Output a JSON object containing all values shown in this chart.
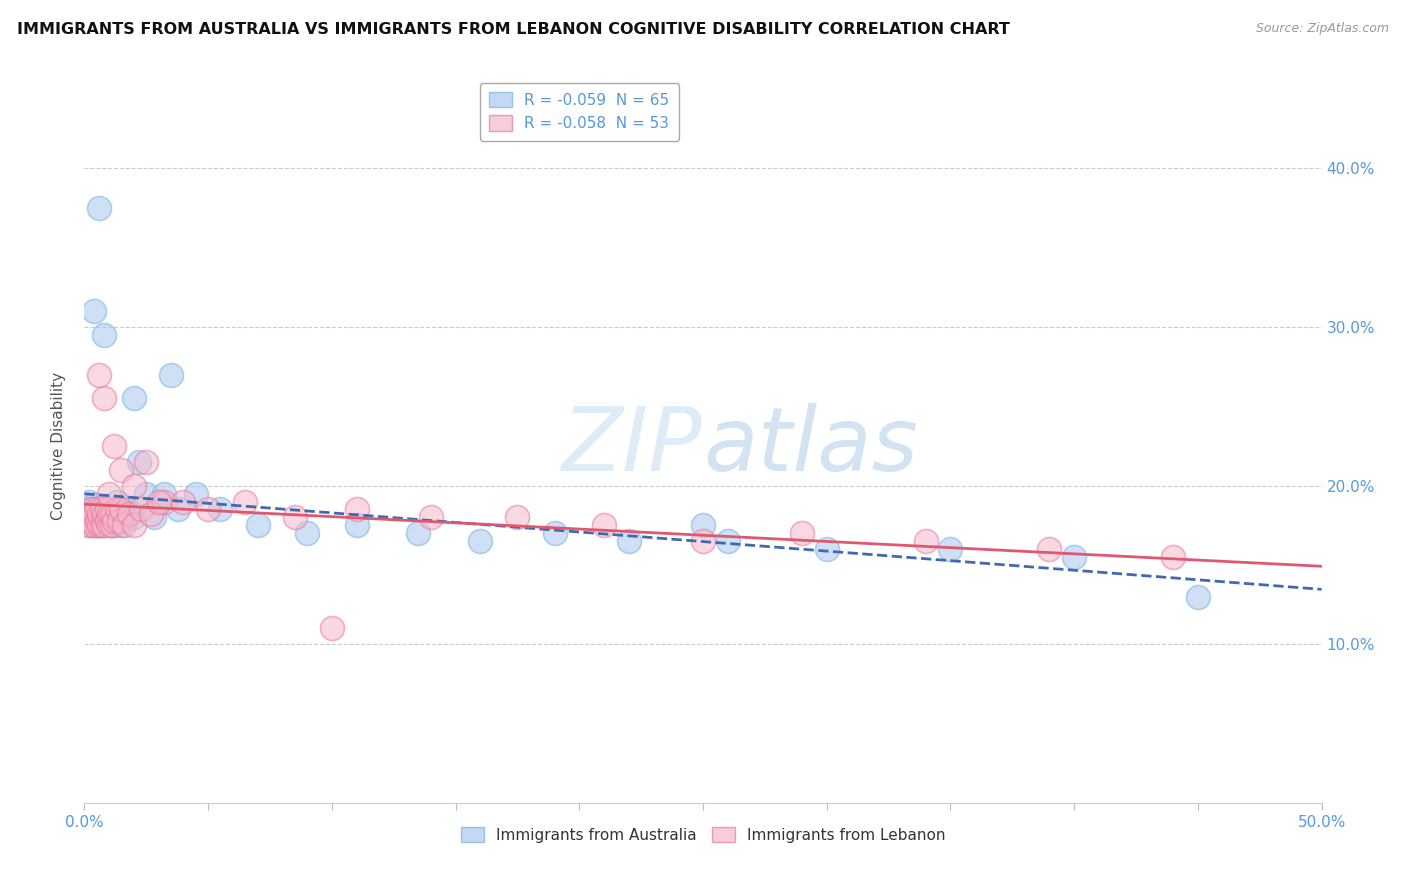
{
  "title": "IMMIGRANTS FROM AUSTRALIA VS IMMIGRANTS FROM LEBANON COGNITIVE DISABILITY CORRELATION CHART",
  "source": "Source: ZipAtlas.com",
  "ylabel": "Cognitive Disability",
  "xlim": [
    0.0,
    0.5
  ],
  "ylim": [
    0.0,
    0.45
  ],
  "australia_color": "#a8c8f0",
  "australia_edge_color": "#7ab3e0",
  "lebanon_color": "#f5b8cc",
  "lebanon_edge_color": "#e87a9a",
  "australia_line_color": "#4169b0",
  "lebanon_line_color": "#e05870",
  "watermark_color": "#ddeefa",
  "background_color": "#ffffff",
  "grid_color": "#cccccc",
  "tick_color": "#5599dd",
  "legend_R1": "R = -0.059  N = 65",
  "legend_R2": "R = -0.058  N = 53",
  "aus_label": "Immigrants from Australia",
  "leb_label": "Immigrants from Lebanon",
  "australia_x": [
    0.001,
    0.002,
    0.002,
    0.003,
    0.003,
    0.003,
    0.003,
    0.004,
    0.004,
    0.004,
    0.005,
    0.005,
    0.005,
    0.006,
    0.006,
    0.006,
    0.007,
    0.007,
    0.007,
    0.008,
    0.008,
    0.008,
    0.009,
    0.009,
    0.01,
    0.01,
    0.01,
    0.011,
    0.011,
    0.012,
    0.012,
    0.013,
    0.013,
    0.014,
    0.015,
    0.016,
    0.017,
    0.018,
    0.02,
    0.022,
    0.025,
    0.028,
    0.032,
    0.038,
    0.045,
    0.055,
    0.07,
    0.09,
    0.11,
    0.135,
    0.16,
    0.19,
    0.22,
    0.26,
    0.3,
    0.35,
    0.4,
    0.45,
    0.015,
    0.008,
    0.006,
    0.004,
    0.02,
    0.035,
    0.25
  ],
  "australia_y": [
    0.183,
    0.175,
    0.19,
    0.182,
    0.18,
    0.185,
    0.178,
    0.175,
    0.182,
    0.188,
    0.182,
    0.175,
    0.18,
    0.185,
    0.175,
    0.18,
    0.185,
    0.178,
    0.182,
    0.18,
    0.175,
    0.185,
    0.178,
    0.185,
    0.182,
    0.178,
    0.185,
    0.18,
    0.175,
    0.182,
    0.175,
    0.19,
    0.18,
    0.185,
    0.183,
    0.178,
    0.185,
    0.182,
    0.18,
    0.215,
    0.195,
    0.18,
    0.195,
    0.185,
    0.195,
    0.185,
    0.175,
    0.17,
    0.175,
    0.17,
    0.165,
    0.17,
    0.165,
    0.165,
    0.16,
    0.16,
    0.155,
    0.13,
    0.175,
    0.295,
    0.375,
    0.31,
    0.255,
    0.27,
    0.175
  ],
  "lebanon_x": [
    0.001,
    0.002,
    0.002,
    0.003,
    0.003,
    0.004,
    0.004,
    0.005,
    0.005,
    0.006,
    0.006,
    0.007,
    0.007,
    0.008,
    0.008,
    0.009,
    0.009,
    0.01,
    0.01,
    0.011,
    0.011,
    0.012,
    0.013,
    0.014,
    0.015,
    0.016,
    0.018,
    0.02,
    0.023,
    0.027,
    0.032,
    0.04,
    0.05,
    0.065,
    0.085,
    0.11,
    0.14,
    0.175,
    0.21,
    0.25,
    0.29,
    0.34,
    0.39,
    0.44,
    0.008,
    0.012,
    0.015,
    0.01,
    0.006,
    0.02,
    0.025,
    0.03,
    0.1
  ],
  "lebanon_y": [
    0.178,
    0.175,
    0.182,
    0.178,
    0.185,
    0.175,
    0.182,
    0.178,
    0.185,
    0.175,
    0.182,
    0.175,
    0.185,
    0.175,
    0.182,
    0.178,
    0.185,
    0.175,
    0.182,
    0.175,
    0.182,
    0.178,
    0.185,
    0.178,
    0.185,
    0.175,
    0.182,
    0.175,
    0.185,
    0.182,
    0.19,
    0.19,
    0.185,
    0.19,
    0.18,
    0.185,
    0.18,
    0.18,
    0.175,
    0.165,
    0.17,
    0.165,
    0.16,
    0.155,
    0.255,
    0.225,
    0.21,
    0.195,
    0.27,
    0.2,
    0.215,
    0.19,
    0.11
  ]
}
